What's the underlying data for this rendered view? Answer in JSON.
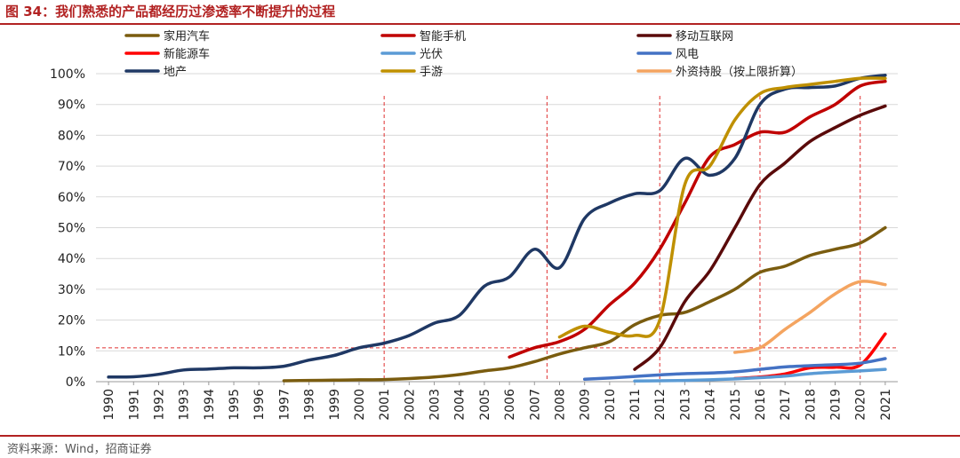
{
  "title": "图 34：我们熟悉的产品都经历过渗透率不断提升的过程",
  "source": "资料来源：Wind，招商证券",
  "chart_data": {
    "type": "line",
    "x": [
      1990,
      1991,
      1992,
      1993,
      1994,
      1995,
      1996,
      1997,
      1998,
      1999,
      2000,
      2001,
      2002,
      2003,
      2004,
      2005,
      2006,
      2007,
      2008,
      2009,
      2010,
      2011,
      2012,
      2013,
      2014,
      2015,
      2016,
      2017,
      2018,
      2019,
      2020,
      2021
    ],
    "x_tick_labels": [
      "1990",
      "1991",
      "1992",
      "1993",
      "1994",
      "1995",
      "1996",
      "1997",
      "1998",
      "1999",
      "2000",
      "2001",
      "2002",
      "2003",
      "2004",
      "2005",
      "2006",
      "2007",
      "2008",
      "2009",
      "2010",
      "2011",
      "2012",
      "2013",
      "2014",
      "2015",
      "2016",
      "2017",
      "2018",
      "2019",
      "2020",
      "2021"
    ],
    "y_tick_labels": [
      "0%",
      "10%",
      "20%",
      "30%",
      "40%",
      "50%",
      "60%",
      "70%",
      "80%",
      "90%",
      "100%"
    ],
    "ylim": [
      0,
      100
    ],
    "y_ticks": [
      0,
      10,
      20,
      30,
      40,
      50,
      60,
      70,
      80,
      90,
      100
    ],
    "grid": true,
    "legend_placement": "top",
    "series": [
      {
        "name": "家用汽车",
        "color": "#7a5c0f",
        "points": [
          [
            1997,
            0.3
          ],
          [
            1998,
            0.4
          ],
          [
            1999,
            0.5
          ],
          [
            2000,
            0.6
          ],
          [
            2001,
            0.7
          ],
          [
            2002,
            1
          ],
          [
            2003,
            1.5
          ],
          [
            2004,
            2.3
          ],
          [
            2005,
            3.5
          ],
          [
            2006,
            4.5
          ],
          [
            2007,
            6.5
          ],
          [
            2008,
            9
          ],
          [
            2009,
            11
          ],
          [
            2010,
            13
          ],
          [
            2011,
            18.5
          ],
          [
            2012,
            21.5
          ],
          [
            2013,
            22.5
          ],
          [
            2014,
            26
          ],
          [
            2015,
            30
          ],
          [
            2016,
            35.5
          ],
          [
            2017,
            37.5
          ],
          [
            2018,
            41
          ],
          [
            2019,
            43
          ],
          [
            2020,
            45
          ],
          [
            2021,
            50
          ]
        ]
      },
      {
        "name": "智能手机",
        "color": "#c00000",
        "points": [
          [
            2006,
            8
          ],
          [
            2007,
            11
          ],
          [
            2008,
            13
          ],
          [
            2009,
            17
          ],
          [
            2010,
            25
          ],
          [
            2011,
            32
          ],
          [
            2012,
            43
          ],
          [
            2013,
            58
          ],
          [
            2014,
            73
          ],
          [
            2015,
            77
          ],
          [
            2016,
            81
          ],
          [
            2017,
            81
          ],
          [
            2018,
            86
          ],
          [
            2019,
            90
          ],
          [
            2020,
            96
          ],
          [
            2021,
            97.5
          ]
        ]
      },
      {
        "name": "移动互联网",
        "color": "#5a0a0a",
        "points": [
          [
            2011,
            4
          ],
          [
            2012,
            11
          ],
          [
            2013,
            26
          ],
          [
            2014,
            36
          ],
          [
            2015,
            50
          ],
          [
            2016,
            64
          ],
          [
            2017,
            71
          ],
          [
            2018,
            78
          ],
          [
            2019,
            82.5
          ],
          [
            2020,
            86.5
          ],
          [
            2021,
            89.5
          ]
        ]
      },
      {
        "name": "新能源车",
        "color": "#ff0000",
        "points": [
          [
            2015,
            1
          ],
          [
            2016,
            1.5
          ],
          [
            2017,
            2.5
          ],
          [
            2018,
            4.5
          ],
          [
            2019,
            4.7
          ],
          [
            2020,
            5.4
          ],
          [
            2021,
            15.5
          ]
        ]
      },
      {
        "name": "光伏",
        "color": "#5b9bd5",
        "points": [
          [
            2011,
            0.2
          ],
          [
            2012,
            0.3
          ],
          [
            2013,
            0.4
          ],
          [
            2014,
            0.6
          ],
          [
            2015,
            0.9
          ],
          [
            2016,
            1.3
          ],
          [
            2017,
            1.8
          ],
          [
            2018,
            2.6
          ],
          [
            2019,
            3.1
          ],
          [
            2020,
            3.5
          ],
          [
            2021,
            4
          ]
        ]
      },
      {
        "name": "风电",
        "color": "#4472c4",
        "points": [
          [
            2009,
            0.8
          ],
          [
            2010,
            1.2
          ],
          [
            2011,
            1.7
          ],
          [
            2012,
            2.2
          ],
          [
            2013,
            2.6
          ],
          [
            2014,
            2.8
          ],
          [
            2015,
            3.2
          ],
          [
            2016,
            4
          ],
          [
            2017,
            4.8
          ],
          [
            2018,
            5.2
          ],
          [
            2019,
            5.5
          ],
          [
            2020,
            6
          ],
          [
            2021,
            7.5
          ]
        ]
      },
      {
        "name": "地产",
        "color": "#1f3864",
        "points": [
          [
            1990,
            1.5
          ],
          [
            1991,
            1.6
          ],
          [
            1992,
            2.4
          ],
          [
            1993,
            3.8
          ],
          [
            1994,
            4.1
          ],
          [
            1995,
            4.5
          ],
          [
            1996,
            4.5
          ],
          [
            1997,
            5
          ],
          [
            1998,
            7
          ],
          [
            1999,
            8.5
          ],
          [
            2000,
            11
          ],
          [
            2001,
            12.5
          ],
          [
            2002,
            15
          ],
          [
            2003,
            19
          ],
          [
            2004,
            21.5
          ],
          [
            2005,
            31
          ],
          [
            2006,
            34
          ],
          [
            2007,
            43
          ],
          [
            2008,
            37
          ],
          [
            2009,
            53
          ],
          [
            2010,
            58
          ],
          [
            2011,
            61
          ],
          [
            2012,
            62
          ],
          [
            2013,
            72.5
          ],
          [
            2014,
            67
          ],
          [
            2015,
            72.5
          ],
          [
            2016,
            90
          ],
          [
            2017,
            95
          ],
          [
            2018,
            95.5
          ],
          [
            2019,
            96
          ],
          [
            2020,
            98.5
          ],
          [
            2021,
            99.5
          ]
        ]
      },
      {
        "name": "手游",
        "color": "#bf9000",
        "points": [
          [
            2008,
            14.5
          ],
          [
            2009,
            18
          ],
          [
            2010,
            16
          ],
          [
            2011,
            15
          ],
          [
            2012,
            20
          ],
          [
            2013,
            64
          ],
          [
            2014,
            70
          ],
          [
            2015,
            85
          ],
          [
            2016,
            93.5
          ],
          [
            2017,
            95.5
          ],
          [
            2018,
            96.5
          ],
          [
            2019,
            97.5
          ],
          [
            2020,
            98.5
          ],
          [
            2021,
            98.5
          ]
        ]
      },
      {
        "name": "外资持股（按上限折算）",
        "color": "#f4a460",
        "points": [
          [
            2015,
            9.5
          ],
          [
            2016,
            11
          ],
          [
            2017,
            17
          ],
          [
            2018,
            22.5
          ],
          [
            2019,
            28.5
          ],
          [
            2020,
            32.5
          ],
          [
            2021,
            31.5
          ]
        ]
      }
    ],
    "reference_lines": {
      "vertical_years": [
        2001,
        2007.5,
        2012,
        2016,
        2020
      ],
      "horizontal_value": 11
    }
  }
}
